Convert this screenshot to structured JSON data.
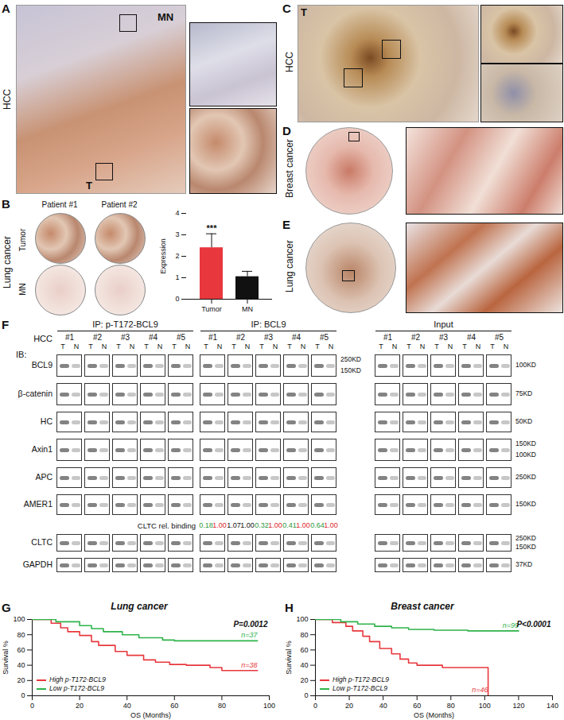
{
  "figure": {
    "A": {
      "label": "A",
      "side": "HCC",
      "marks": [
        "MN",
        "T"
      ]
    },
    "B": {
      "label": "B",
      "side": "Lung cancer",
      "columns": [
        "Patient #1",
        "Patient #2"
      ],
      "rows": [
        "Tumor",
        "MN"
      ]
    },
    "C": {
      "label": "C",
      "side": "HCC",
      "marks": [
        "T"
      ]
    },
    "D": {
      "label": "D",
      "side": "Breast cancer"
    },
    "E": {
      "label": "E",
      "side": "Lung cancer"
    },
    "F": {
      "label": "F",
      "ib": "IB:",
      "cohort": "HCC",
      "ip_headers": [
        "IP: p-T172-BCL9",
        "IP: BCL9",
        "Input"
      ],
      "samples": [
        "#1",
        "#2",
        "#3",
        "#4",
        "#5"
      ],
      "lanes": [
        "T",
        "N"
      ],
      "rows_top": [
        {
          "name": "BCL9",
          "mw_mid": [
            "250KD",
            "150KD"
          ],
          "mw_right": [
            "100KD"
          ]
        },
        {
          "name": "β-catenin",
          "mw_right": [
            "75KD"
          ]
        },
        {
          "name": "HC",
          "mw_right": [
            "50KD"
          ]
        },
        {
          "name": "Axin1",
          "mw_right": [
            "150KD",
            "100KD"
          ]
        },
        {
          "name": "APC",
          "mw_right": [
            "250KD"
          ]
        },
        {
          "name": "AMER1",
          "mw_right": [
            "150KD"
          ]
        }
      ],
      "binding": {
        "label": "CLTC rel. binding",
        "values": [
          [
            "0.18",
            "1.00"
          ],
          [
            "1.07",
            "1.00"
          ],
          [
            "0.32",
            "1.00"
          ],
          [
            "0.41",
            "1.00"
          ],
          [
            "0.64",
            "1.00"
          ]
        ],
        "colors": [
          [
            "#2e9a3a",
            "#e0262b"
          ],
          [
            "#111111",
            "#111111"
          ],
          [
            "#2e9a3a",
            "#e0262b"
          ],
          [
            "#2e9a3a",
            "#e0262b"
          ],
          [
            "#2e9a3a",
            "#e0262b"
          ]
        ]
      },
      "rows_bottom": [
        {
          "name": "CLTC",
          "mw_right": [
            "250KD",
            "150KD"
          ]
        },
        {
          "name": "GAPDH",
          "mw_right": [
            "37KD"
          ]
        }
      ]
    },
    "G": {
      "label": "G"
    },
    "H": {
      "label": "H"
    }
  },
  "chart_data": [
    {
      "type": "bar",
      "categories": [
        "Tumor",
        "MN"
      ],
      "values": [
        2.4,
        1.05
      ],
      "errors": [
        0.65,
        0.25
      ],
      "colors": [
        "#e8383d",
        "#111111"
      ],
      "ylabel": "Expression",
      "ylim": [
        0,
        4
      ],
      "yticks": [
        0,
        1,
        2,
        3,
        4
      ],
      "annotations": [
        {
          "category": "Tumor",
          "text": "***"
        }
      ]
    },
    {
      "type": "line",
      "line_style": "step",
      "title": "Lung cancer",
      "annotation": "P=0.0012",
      "xlabel": "OS (Months)",
      "ylabel": "Survival %",
      "xlim": [
        0,
        100
      ],
      "xticks": [
        0,
        20,
        40,
        60,
        80,
        100
      ],
      "ylim": [
        0,
        100
      ],
      "yticks": [
        0,
        20,
        40,
        60,
        80,
        100
      ],
      "legend": "lower left",
      "series": [
        {
          "name": "High p-T172-BCL9",
          "color": "#e8383d",
          "n_label": "n=38",
          "x": [
            0,
            8,
            12,
            15,
            20,
            25,
            28,
            35,
            40,
            47,
            52,
            58,
            65,
            75,
            80,
            95
          ],
          "values": [
            100,
            95,
            89,
            84,
            79,
            71,
            66,
            58,
            53,
            47,
            44,
            41,
            40,
            37,
            33,
            33
          ]
        },
        {
          "name": "Low p-T172-BCL9",
          "color": "#2eb34a",
          "n_label": "n=37",
          "x": [
            0,
            10,
            20,
            25,
            30,
            38,
            45,
            55,
            60,
            95
          ],
          "values": [
            100,
            97,
            92,
            88,
            84,
            80,
            76,
            73,
            72,
            72
          ]
        }
      ]
    },
    {
      "type": "line",
      "line_style": "step",
      "title": "Breast cancer",
      "annotation": "P<0.0001",
      "xlabel": "OS (Months)",
      "ylabel": "Survival %",
      "xlim": [
        0,
        140
      ],
      "xticks": [
        0,
        20,
        40,
        60,
        80,
        100,
        120,
        140
      ],
      "ylim": [
        0,
        100
      ],
      "yticks": [
        0,
        20,
        40,
        60,
        80,
        100
      ],
      "legend": "lower left",
      "series": [
        {
          "name": "High p-T172-BCL9",
          "color": "#e8383d",
          "n_label": "n=46",
          "x": [
            0,
            10,
            18,
            22,
            28,
            32,
            38,
            45,
            50,
            55,
            60,
            75,
            100,
            102
          ],
          "values": [
            100,
            96,
            91,
            85,
            78,
            71,
            62,
            55,
            48,
            43,
            40,
            37,
            37,
            0
          ]
        },
        {
          "name": "Low p-T172-BCL9",
          "color": "#2eb34a",
          "n_label": "n=99",
          "x": [
            0,
            15,
            25,
            35,
            45,
            55,
            70,
            90,
            120
          ],
          "values": [
            100,
            97,
            94,
            91,
            89,
            87,
            86,
            85,
            85
          ]
        }
      ]
    }
  ]
}
